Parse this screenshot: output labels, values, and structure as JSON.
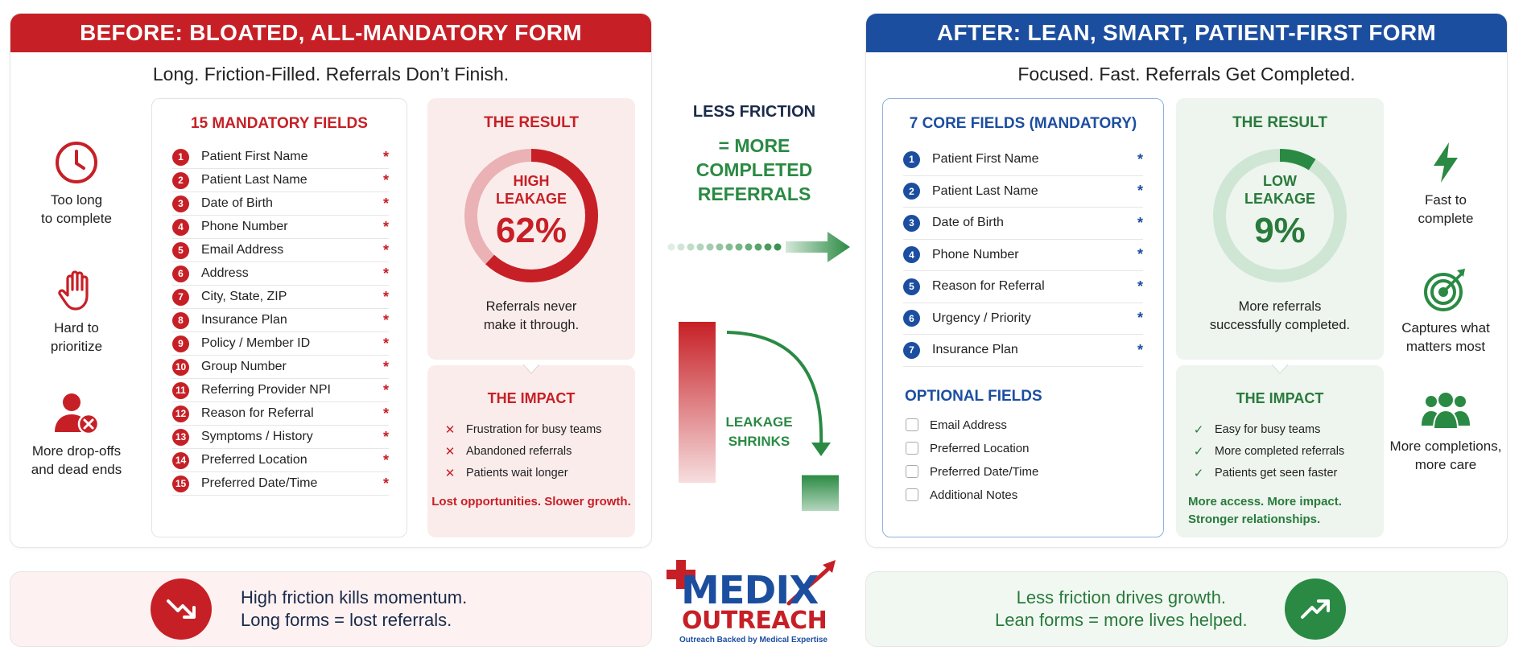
{
  "before": {
    "banner": "BEFORE: BLOATED, ALL-MANDATORY FORM",
    "subtitle": "Long. Friction-Filled. Referrals Don’t Finish.",
    "side": [
      {
        "icon": "clock-icon",
        "label": "Too long\nto complete"
      },
      {
        "icon": "raised-hand-icon",
        "label": "Hard to\nprioritize"
      },
      {
        "icon": "user-removed-icon",
        "label": "More drop-offs\nand dead ends"
      }
    ],
    "fields_title": "15 MANDATORY FIELDS",
    "fields": [
      {
        "n": "1",
        "label": "Patient First Name"
      },
      {
        "n": "2",
        "label": "Patient Last Name"
      },
      {
        "n": "3",
        "label": "Date of Birth"
      },
      {
        "n": "4",
        "label": "Phone Number"
      },
      {
        "n": "5",
        "label": "Email Address"
      },
      {
        "n": "6",
        "label": "Address"
      },
      {
        "n": "7",
        "label": "City, State, ZIP"
      },
      {
        "n": "8",
        "label": "Insurance Plan"
      },
      {
        "n": "9",
        "label": "Policy / Member ID"
      },
      {
        "n": "10",
        "label": "Group Number"
      },
      {
        "n": "11",
        "label": "Referring Provider NPI"
      },
      {
        "n": "12",
        "label": "Reason for Referral"
      },
      {
        "n": "13",
        "label": "Symptoms / History"
      },
      {
        "n": "14",
        "label": "Preferred Location"
      },
      {
        "n": "15",
        "label": "Preferred Date/Time"
      }
    ],
    "required_mark": "*",
    "result_title": "THE RESULT",
    "donut_label_1": "HIGH",
    "donut_label_2": "LEAKAGE",
    "leakage_value": 62,
    "leakage_text": "62%",
    "result_note": "Referrals never\nmake it through.",
    "impact_title": "THE IMPACT",
    "impact_items": [
      "Frustration for busy teams",
      "Abandoned referrals",
      "Patients wait longer"
    ],
    "impact_mark": "✕",
    "impact_foot": "Lost opportunities. Slower growth.",
    "bottom_text": "High friction kills momentum.\nLong forms = lost referrals.",
    "color": "#c62026"
  },
  "after": {
    "banner": "AFTER: LEAN, SMART, PATIENT-FIRST FORM",
    "subtitle": "Focused. Fast. Referrals Get Completed.",
    "side": [
      {
        "icon": "lightning-icon",
        "label": "Fast to\ncomplete"
      },
      {
        "icon": "target-icon",
        "label": "Captures what\nmatters most"
      },
      {
        "icon": "people-group-icon",
        "label": "More completions,\nmore care"
      }
    ],
    "fields_title": "7 CORE FIELDS (MANDATORY)",
    "fields": [
      {
        "n": "1",
        "label": "Patient First Name"
      },
      {
        "n": "2",
        "label": "Patient Last Name"
      },
      {
        "n": "3",
        "label": "Date of Birth"
      },
      {
        "n": "4",
        "label": "Phone Number"
      },
      {
        "n": "5",
        "label": "Reason for Referral"
      },
      {
        "n": "6",
        "label": "Urgency / Priority"
      },
      {
        "n": "7",
        "label": "Insurance Plan"
      }
    ],
    "required_mark": "*",
    "optional_title": "OPTIONAL FIELDS",
    "optional_fields": [
      "Email Address",
      "Preferred Location",
      "Preferred Date/Time",
      "Additional Notes"
    ],
    "result_title": "THE RESULT",
    "donut_label_1": "LOW",
    "donut_label_2": "LEAKAGE",
    "leakage_value": 9,
    "leakage_text": "9%",
    "result_note": "More referrals\nsuccessfully completed.",
    "impact_title": "THE IMPACT",
    "impact_items": [
      "Easy for busy teams",
      "More completed referrals",
      "Patients get seen faster"
    ],
    "impact_mark": "✓",
    "impact_foot": "More access. More impact.\nStronger relationships.",
    "bottom_text": "Less friction drives growth.\nLean forms = more lives helped.",
    "color": "#2a8a43"
  },
  "middle": {
    "title": "LESS FRICTION",
    "subtitle": "= MORE\nCOMPLETED\nREFERRALS",
    "shrink_label": "LEAKAGE\nSHRINKS",
    "bar_before": 62,
    "bar_after": 9
  },
  "logo": {
    "name_1": "MEDIX",
    "name_2": "OUTREACH",
    "tagline": "Outreach Backed by Medical Expertise"
  }
}
